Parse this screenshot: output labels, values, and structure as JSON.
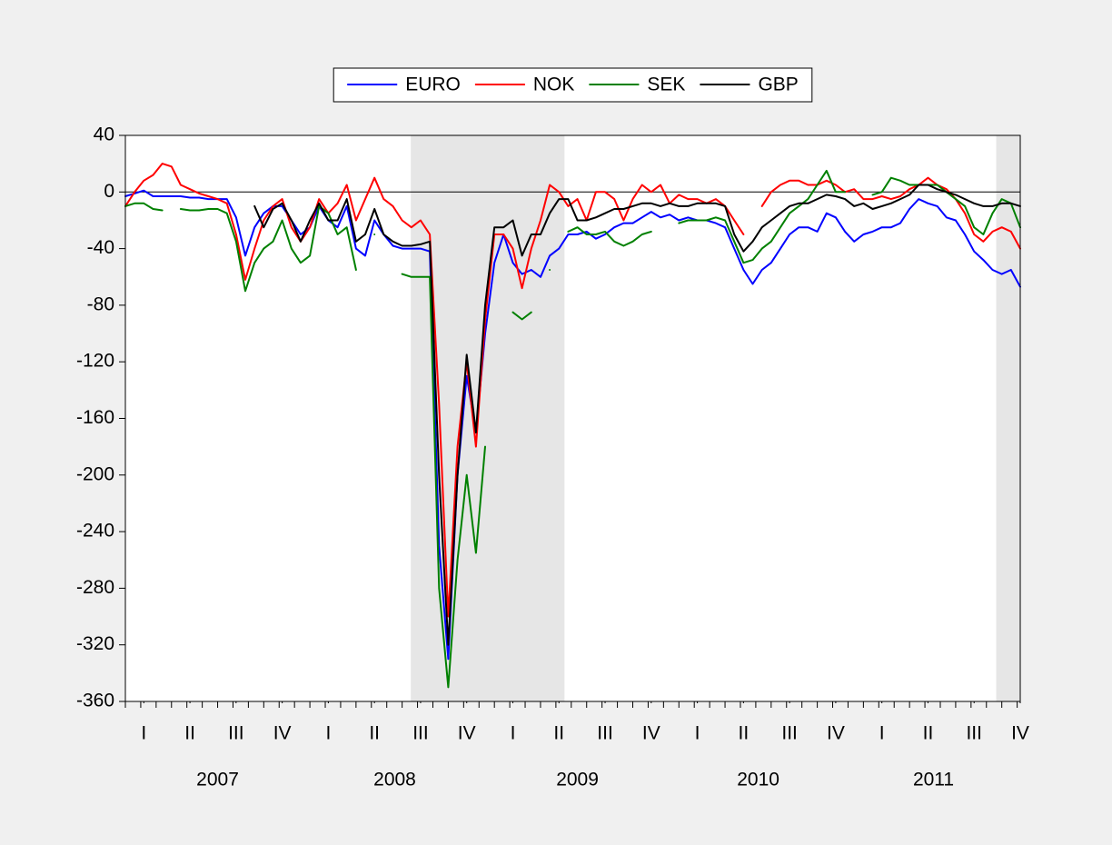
{
  "chart_data": {
    "type": "line",
    "x": [
      2007.0,
      2007.05,
      2007.1,
      2007.15,
      2007.2,
      2007.25,
      2007.3,
      2007.35,
      2007.4,
      2007.45,
      2007.5,
      2007.55,
      2007.6,
      2007.65,
      2007.7,
      2007.75,
      2007.8,
      2007.85,
      2007.9,
      2007.95,
      2008.0,
      2008.05,
      2008.1,
      2008.15,
      2008.2,
      2008.25,
      2008.3,
      2008.35,
      2008.4,
      2008.45,
      2008.5,
      2008.55,
      2008.6,
      2008.65,
      2008.7,
      2008.75,
      2008.8,
      2008.85,
      2008.9,
      2008.95,
      2009.0,
      2009.05,
      2009.1,
      2009.15,
      2009.2,
      2009.25,
      2009.3,
      2009.35,
      2009.4,
      2009.45,
      2009.5,
      2009.55,
      2009.6,
      2009.65,
      2009.7,
      2009.75,
      2009.8,
      2009.85,
      2009.9,
      2009.95,
      2010.0,
      2010.05,
      2010.1,
      2010.15,
      2010.2,
      2010.25,
      2010.3,
      2010.35,
      2010.4,
      2010.45,
      2010.5,
      2010.55,
      2010.6,
      2010.65,
      2010.7,
      2010.75,
      2010.8,
      2010.85,
      2010.9,
      2010.95,
      2011.0,
      2011.05,
      2011.1,
      2011.15,
      2011.2,
      2011.25,
      2011.3,
      2011.35,
      2011.4,
      2011.45,
      2011.5,
      2011.55,
      2011.6,
      2011.65,
      2011.7,
      2011.75,
      2011.8,
      2011.85
    ],
    "series": [
      {
        "name": "EURO",
        "color": "#0000ff",
        "values": [
          -3,
          -1,
          1,
          -3,
          -3,
          -3,
          -3,
          -4,
          -4,
          -5,
          -5,
          -5,
          -18,
          -45,
          -25,
          -15,
          -10,
          -10,
          -20,
          -30,
          -25,
          -10,
          -20,
          -25,
          -10,
          -40,
          -45,
          -20,
          -30,
          -38,
          -40,
          -40,
          -40,
          -42,
          -250,
          -330,
          -200,
          -130,
          -170,
          -100,
          -50,
          -30,
          -50,
          -58,
          -55,
          -60,
          -45,
          -40,
          -30,
          -30,
          -28,
          -33,
          -30,
          -25,
          -22,
          -22,
          -18,
          -14,
          -18,
          -16,
          -20,
          -18,
          -20,
          -20,
          -22,
          -25,
          -40,
          -55,
          -65,
          -55,
          -50,
          -40,
          -30,
          -25,
          -25,
          -28,
          -15,
          -18,
          -28,
          -35,
          -30,
          -28,
          -25,
          -25,
          -22,
          -12,
          -5,
          -8,
          -10,
          -18,
          -20,
          -30,
          -42,
          -48,
          -55,
          -58,
          -55,
          -67
        ]
      },
      {
        "name": "NOK",
        "color": "#ff0000",
        "values": [
          -10,
          0,
          8,
          12,
          20,
          18,
          5,
          2,
          -1,
          -3,
          -5,
          -8,
          -30,
          -62,
          -40,
          -20,
          -10,
          -5,
          -25,
          -35,
          -25,
          -5,
          -15,
          -8,
          5,
          -20,
          -5,
          10,
          -5,
          -10,
          -20,
          -25,
          -20,
          -30,
          -150,
          -300,
          -180,
          -120,
          -180,
          -90,
          -30,
          -30,
          -40,
          -68,
          -40,
          -20,
          5,
          0,
          -10,
          -5,
          -20,
          0,
          0,
          -5,
          -20,
          -5,
          5,
          0,
          5,
          -8,
          -2,
          -5,
          -5,
          -8,
          -5,
          -10,
          -20,
          -30,
          null,
          -10,
          0,
          5,
          8,
          8,
          5,
          5,
          8,
          5,
          0,
          2,
          -5,
          -5,
          -3,
          -5,
          -3,
          2,
          5,
          10,
          5,
          2,
          -5,
          -15,
          -30,
          -35,
          -28,
          -25,
          -28,
          -40
        ]
      },
      {
        "name": "SEK",
        "color": "#008000",
        "values": [
          -10,
          -8,
          -8,
          -12,
          -13,
          null,
          -12,
          -13,
          -13,
          -12,
          -12,
          -15,
          -35,
          -70,
          -50,
          -40,
          -35,
          -20,
          -40,
          -50,
          -45,
          -10,
          -15,
          -30,
          -25,
          -55,
          null,
          -30,
          null,
          null,
          -58,
          -60,
          -60,
          -60,
          -280,
          -350,
          -260,
          -200,
          -255,
          -180,
          null,
          null,
          -85,
          -90,
          -85,
          null,
          -55,
          null,
          -28,
          -25,
          -30,
          -30,
          -28,
          -35,
          -38,
          -35,
          -30,
          -28,
          null,
          null,
          -22,
          -20,
          -20,
          -20,
          -18,
          -20,
          -35,
          -50,
          -48,
          -40,
          -35,
          -25,
          -15,
          -10,
          -5,
          5,
          15,
          0,
          0,
          null,
          null,
          -2,
          0,
          10,
          8,
          5,
          5,
          5,
          5,
          0,
          -5,
          -10,
          -25,
          -30,
          -15,
          -5,
          -8,
          -25
        ]
      },
      {
        "name": "GBP",
        "color": "#000000",
        "values": [
          null,
          null,
          null,
          null,
          null,
          null,
          null,
          null,
          null,
          null,
          null,
          null,
          null,
          null,
          -10,
          -25,
          -12,
          -8,
          -20,
          -35,
          -20,
          -8,
          -20,
          -20,
          -5,
          -35,
          -30,
          -12,
          -30,
          -35,
          -38,
          -38,
          -37,
          -35,
          -200,
          -320,
          -200,
          -115,
          -170,
          -80,
          -25,
          -25,
          -20,
          -45,
          -30,
          -30,
          -15,
          -5,
          -5,
          -20,
          -20,
          -18,
          -15,
          -12,
          -12,
          -10,
          -8,
          -8,
          -10,
          -8,
          -10,
          -10,
          -8,
          -8,
          -8,
          -10,
          -30,
          -42,
          -35,
          -25,
          -20,
          -15,
          -10,
          -8,
          -8,
          -5,
          -2,
          -3,
          -5,
          -10,
          -8,
          -12,
          -10,
          -8,
          -5,
          -2,
          5,
          5,
          2,
          0,
          -2,
          -5,
          -8,
          -10,
          -10,
          -8,
          -8,
          -10
        ]
      }
    ],
    "xlim": [
      2007.0,
      2011.85
    ],
    "ylim": [
      -360,
      40
    ],
    "yticks": [
      40,
      0,
      -40,
      -80,
      -120,
      -160,
      -200,
      -240,
      -280,
      -320,
      -360
    ],
    "xticks": [
      {
        "value": 2007.1,
        "label": "I"
      },
      {
        "value": 2007.35,
        "label": "II"
      },
      {
        "value": 2007.6,
        "label": "III"
      },
      {
        "value": 2007.85,
        "label": "IV"
      },
      {
        "value": 2008.1,
        "label": "I"
      },
      {
        "value": 2008.35,
        "label": "II"
      },
      {
        "value": 2008.6,
        "label": "III"
      },
      {
        "value": 2008.85,
        "label": "IV"
      },
      {
        "value": 2009.1,
        "label": "I"
      },
      {
        "value": 2009.35,
        "label": "II"
      },
      {
        "value": 2009.6,
        "label": "III"
      },
      {
        "value": 2009.85,
        "label": "IV"
      },
      {
        "value": 2010.1,
        "label": "I"
      },
      {
        "value": 2010.35,
        "label": "II"
      },
      {
        "value": 2010.6,
        "label": "III"
      },
      {
        "value": 2010.85,
        "label": "IV"
      },
      {
        "value": 2011.1,
        "label": "I"
      },
      {
        "value": 2011.35,
        "label": "II"
      },
      {
        "value": 2011.6,
        "label": "III"
      },
      {
        "value": 2011.85,
        "label": "IV"
      }
    ],
    "year_labels": [
      {
        "value": 2007.5,
        "label": "2007"
      },
      {
        "value": 2008.46,
        "label": "2008"
      },
      {
        "value": 2009.45,
        "label": "2009"
      },
      {
        "value": 2010.43,
        "label": "2010"
      },
      {
        "value": 2011.38,
        "label": "2011"
      }
    ],
    "shaded": [
      [
        2008.547,
        2009.38
      ],
      [
        2011.72,
        2011.85
      ]
    ],
    "reference_line": 0,
    "legend": "top"
  }
}
